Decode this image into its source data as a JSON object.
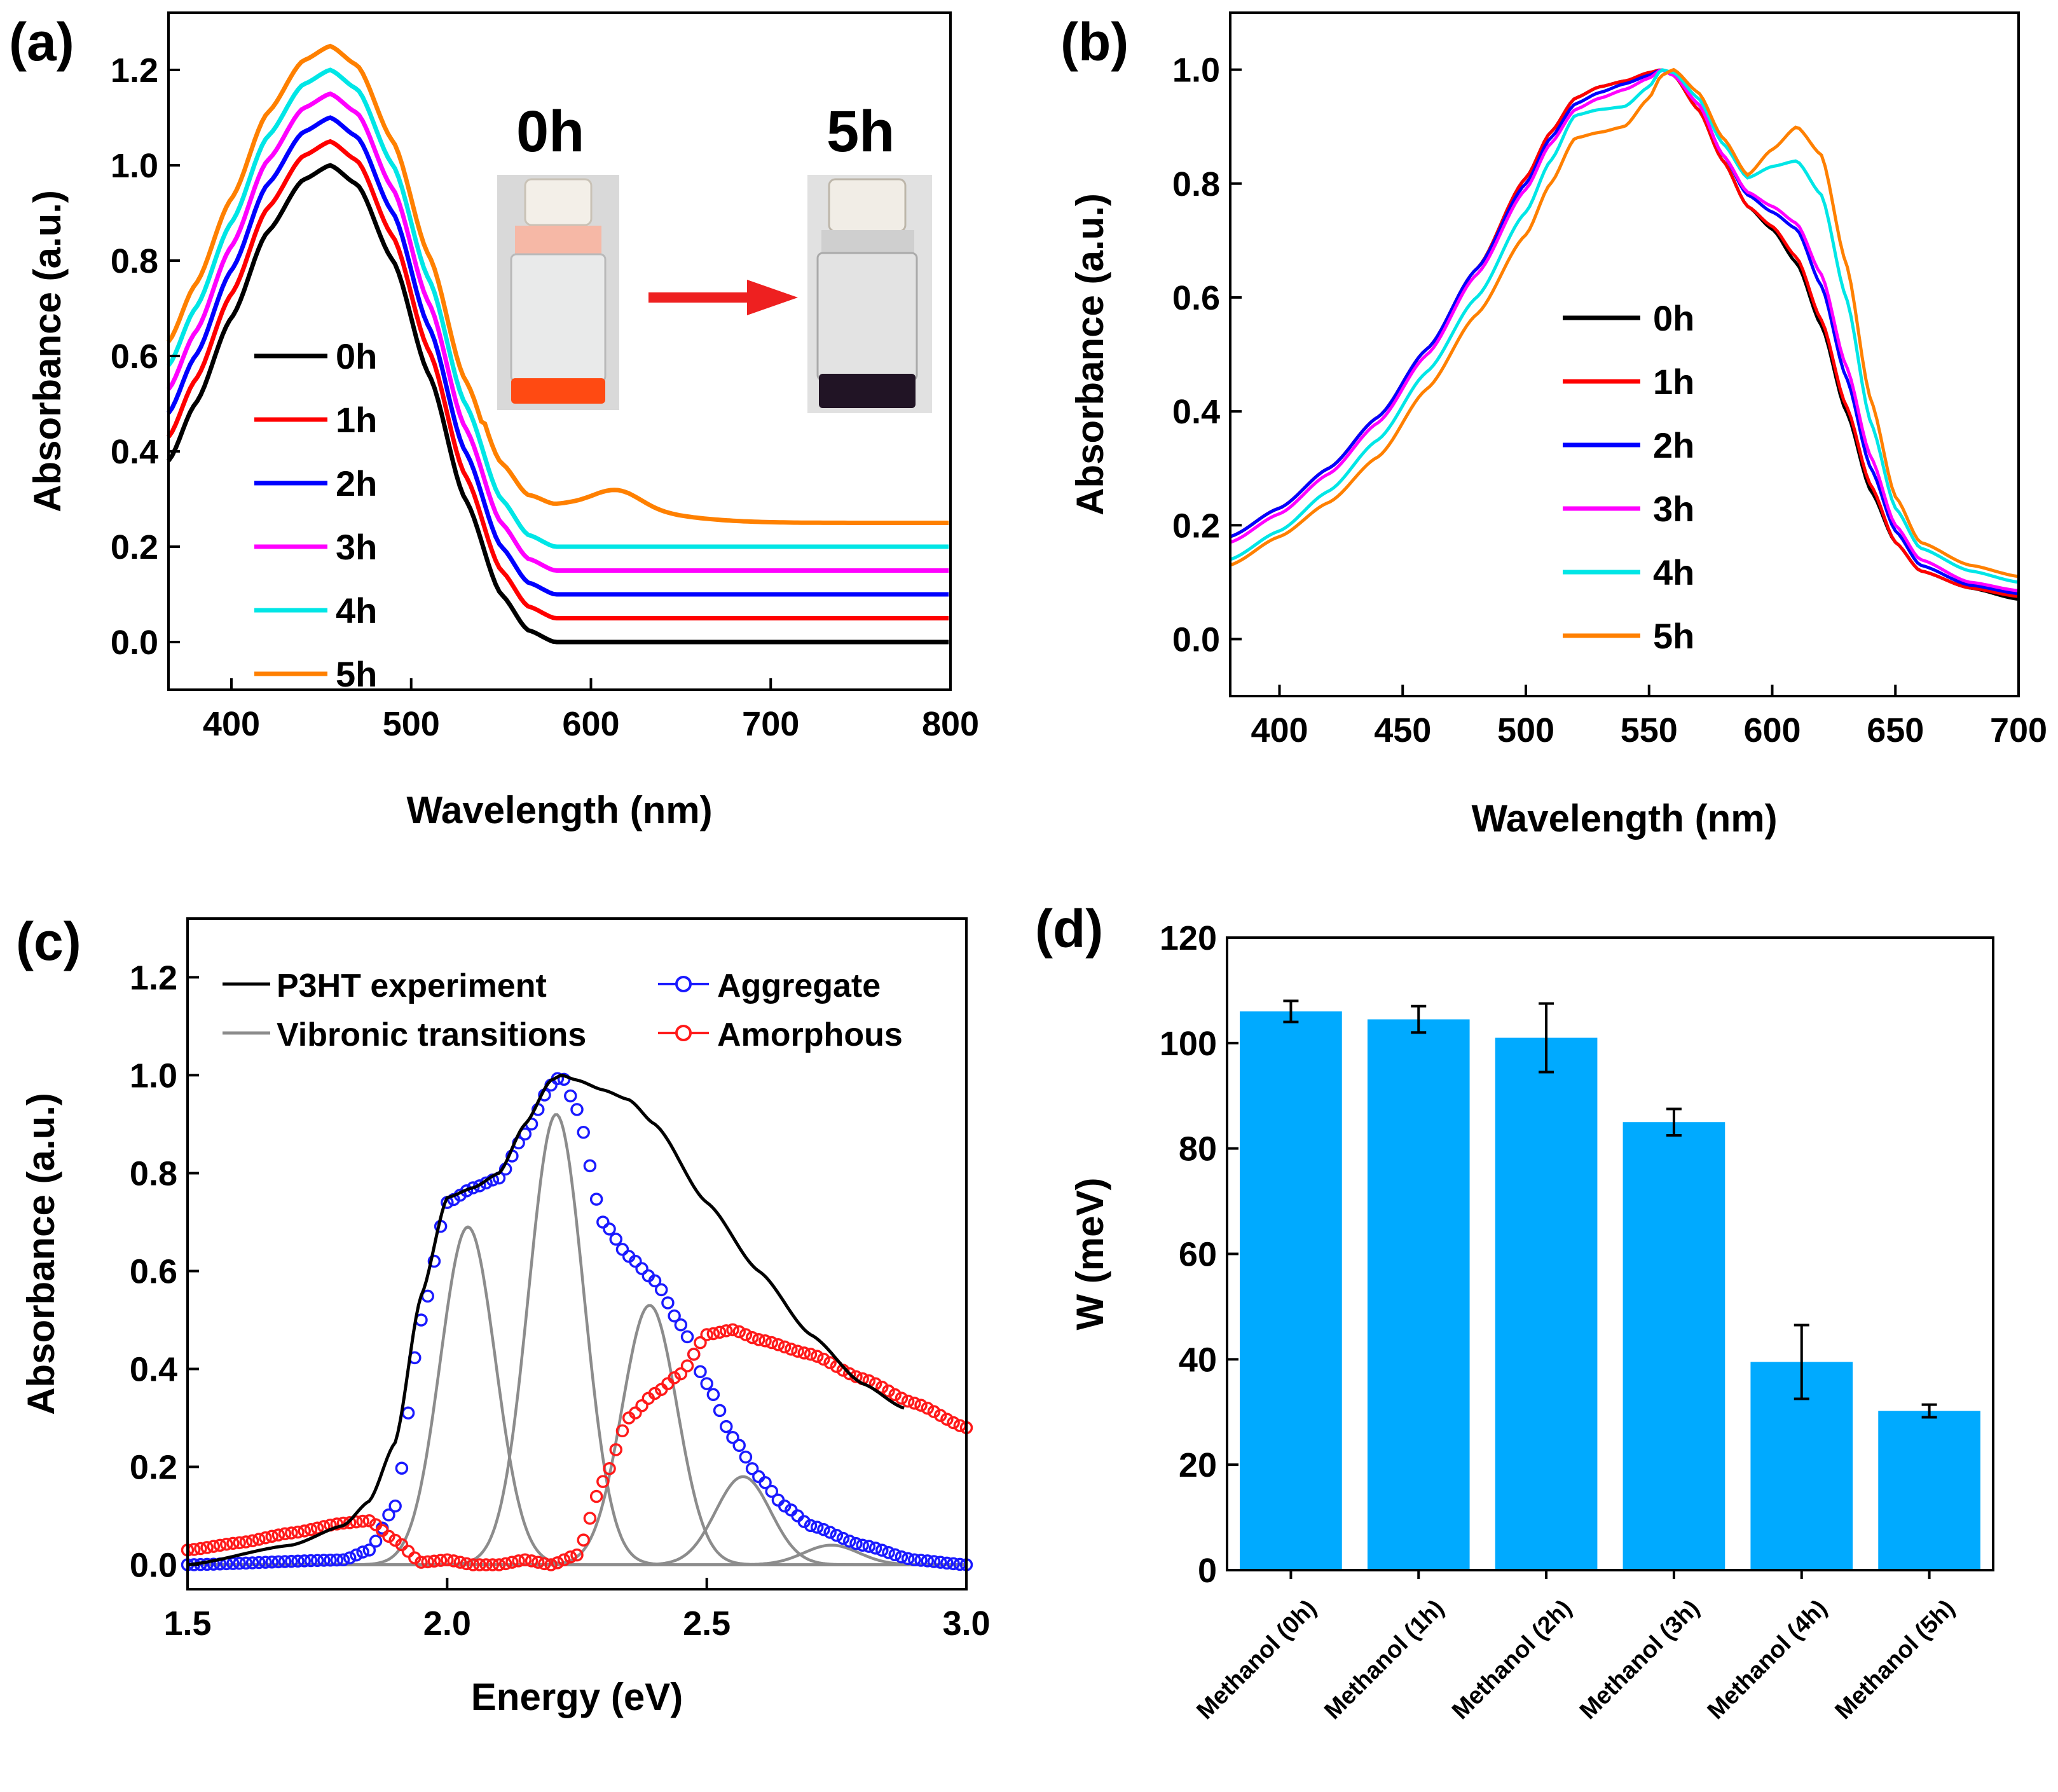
{
  "chart_data": [
    {
      "panel": "(a)",
      "type": "line",
      "xlabel": "Wavelength (nm)",
      "ylabel": "Absorbance (a.u.)",
      "xlim": [
        365,
        800
      ],
      "ylim": [
        -0.1,
        1.32
      ],
      "xticks": [
        "400",
        "500",
        "600",
        "700",
        "800"
      ],
      "yticks": [
        "0.0",
        "0.2",
        "0.4",
        "0.6",
        "0.8",
        "1.0",
        "1.2"
      ],
      "legend": [
        "0h",
        "1h",
        "2h",
        "3h",
        "4h",
        "5h"
      ],
      "inset": {
        "left_label": "0h",
        "right_label": "5h"
      },
      "series": [
        {
          "name": "0h",
          "color": "#000000",
          "offset": 0.0
        },
        {
          "name": "1h",
          "color": "#ff0000",
          "offset": 0.05
        },
        {
          "name": "2h",
          "color": "#0000ff",
          "offset": 0.1
        },
        {
          "name": "3h",
          "color": "#ff00ff",
          "offset": 0.15
        },
        {
          "name": "4h",
          "color": "#00e6e6",
          "offset": 0.2
        },
        {
          "name": "5h",
          "color": "#ff8000",
          "offset": 0.25
        }
      ],
      "base_curve": {
        "x": [
          365,
          380,
          400,
          420,
          440,
          455,
          470,
          490,
          510,
          530,
          550,
          565,
          580,
          600,
          620,
          650,
          700,
          750,
          800
        ],
        "y": [
          0.38,
          0.5,
          0.68,
          0.86,
          0.97,
          1.0,
          0.96,
          0.8,
          0.56,
          0.3,
          0.1,
          0.025,
          0.0,
          0.0,
          0.0,
          0.0,
          0.0,
          0.0,
          0.0
        ]
      },
      "bump_5h": {
        "center": 615,
        "height": 0.035,
        "width": 18
      }
    },
    {
      "panel": "(b)",
      "type": "line",
      "xlabel": "Wavelength (nm)",
      "ylabel": "Absorbance (a.u.)",
      "xlim": [
        380,
        700
      ],
      "ylim": [
        -0.1,
        1.1
      ],
      "xticks": [
        "400",
        "450",
        "500",
        "550",
        "600",
        "650",
        "700"
      ],
      "yticks": [
        "0.0",
        "0.2",
        "0.4",
        "0.6",
        "0.8",
        "1.0"
      ],
      "legend": [
        "0h",
        "1h",
        "2h",
        "3h",
        "4h",
        "5h"
      ],
      "series": [
        {
          "name": "0h",
          "color": "#000000",
          "x": [
            380,
            400,
            420,
            440,
            460,
            480,
            500,
            510,
            520,
            530,
            540,
            550,
            555,
            560,
            570,
            580,
            590,
            600,
            610,
            620,
            630,
            640,
            650,
            660,
            680,
            700
          ],
          "y": [
            0.18,
            0.23,
            0.3,
            0.39,
            0.51,
            0.65,
            0.81,
            0.89,
            0.95,
            0.97,
            0.98,
            0.99,
            1.0,
            0.99,
            0.93,
            0.84,
            0.76,
            0.72,
            0.66,
            0.55,
            0.4,
            0.26,
            0.17,
            0.12,
            0.09,
            0.07
          ]
        },
        {
          "name": "1h",
          "color": "#ff0000",
          "x": [
            380,
            400,
            420,
            440,
            460,
            480,
            500,
            510,
            520,
            530,
            540,
            550,
            555,
            560,
            570,
            580,
            590,
            600,
            610,
            620,
            630,
            640,
            650,
            660,
            680,
            700
          ],
          "y": [
            0.18,
            0.23,
            0.3,
            0.39,
            0.51,
            0.65,
            0.81,
            0.89,
            0.95,
            0.97,
            0.98,
            0.995,
            1.0,
            0.99,
            0.93,
            0.84,
            0.76,
            0.725,
            0.67,
            0.56,
            0.41,
            0.27,
            0.17,
            0.12,
            0.09,
            0.075
          ]
        },
        {
          "name": "2h",
          "color": "#0000ff",
          "x": [
            380,
            400,
            420,
            440,
            460,
            480,
            500,
            510,
            520,
            530,
            540,
            550,
            555,
            560,
            570,
            580,
            590,
            600,
            610,
            620,
            630,
            640,
            650,
            660,
            680,
            700
          ],
          "y": [
            0.18,
            0.23,
            0.3,
            0.39,
            0.51,
            0.65,
            0.8,
            0.88,
            0.94,
            0.96,
            0.975,
            0.99,
            1.0,
            0.99,
            0.94,
            0.85,
            0.78,
            0.75,
            0.72,
            0.62,
            0.46,
            0.3,
            0.19,
            0.13,
            0.095,
            0.08
          ]
        },
        {
          "name": "3h",
          "color": "#ff00ff",
          "x": [
            380,
            400,
            420,
            440,
            460,
            480,
            500,
            510,
            520,
            530,
            540,
            550,
            555,
            560,
            570,
            580,
            590,
            600,
            610,
            620,
            630,
            640,
            650,
            660,
            680,
            700
          ],
          "y": [
            0.17,
            0.22,
            0.29,
            0.38,
            0.5,
            0.64,
            0.79,
            0.87,
            0.93,
            0.95,
            0.965,
            0.985,
            1.0,
            0.99,
            0.94,
            0.85,
            0.785,
            0.76,
            0.73,
            0.64,
            0.48,
            0.32,
            0.2,
            0.14,
            0.1,
            0.085
          ]
        },
        {
          "name": "4h",
          "color": "#00e6e6",
          "x": [
            380,
            400,
            420,
            440,
            460,
            480,
            500,
            510,
            520,
            530,
            540,
            550,
            555,
            560,
            570,
            580,
            590,
            600,
            610,
            620,
            630,
            640,
            650,
            660,
            680,
            700
          ],
          "y": [
            0.14,
            0.19,
            0.26,
            0.35,
            0.47,
            0.6,
            0.75,
            0.84,
            0.92,
            0.93,
            0.935,
            0.97,
            1.0,
            0.995,
            0.95,
            0.87,
            0.81,
            0.83,
            0.84,
            0.78,
            0.6,
            0.38,
            0.23,
            0.16,
            0.12,
            0.1
          ]
        },
        {
          "name": "5h",
          "color": "#ff8000",
          "x": [
            380,
            400,
            420,
            440,
            460,
            480,
            500,
            510,
            520,
            530,
            540,
            550,
            555,
            560,
            570,
            580,
            590,
            600,
            610,
            620,
            630,
            640,
            650,
            660,
            680,
            700
          ],
          "y": [
            0.13,
            0.18,
            0.24,
            0.32,
            0.44,
            0.57,
            0.71,
            0.8,
            0.88,
            0.89,
            0.9,
            0.95,
            0.99,
            1.0,
            0.96,
            0.88,
            0.815,
            0.86,
            0.9,
            0.85,
            0.66,
            0.42,
            0.25,
            0.17,
            0.13,
            0.11
          ]
        }
      ]
    },
    {
      "panel": "(c)",
      "type": "line",
      "xlabel": "Energy (eV)",
      "ylabel": "Absorbance (a.u.)",
      "xlim": [
        1.5,
        3.0
      ],
      "ylim": [
        -0.05,
        1.32
      ],
      "xticks": [
        "1.5",
        "2.0",
        "2.5",
        "3.0"
      ],
      "yticks": [
        "0.0",
        "0.2",
        "0.4",
        "0.6",
        "0.8",
        "1.0",
        "1.2"
      ],
      "legend": [
        "P3HT experiment",
        "Vibronic transitions",
        "Aggregate",
        "Amorphous"
      ],
      "experiment": {
        "x": [
          1.5,
          1.7,
          1.8,
          1.85,
          1.9,
          1.95,
          2.0,
          2.05,
          2.1,
          2.15,
          2.2,
          2.22,
          2.25,
          2.3,
          2.35,
          2.4,
          2.5,
          2.6,
          2.7,
          2.8,
          2.88
        ],
        "y": [
          0.0,
          0.04,
          0.08,
          0.13,
          0.25,
          0.55,
          0.75,
          0.77,
          0.8,
          0.9,
          0.99,
          1.0,
          0.99,
          0.97,
          0.95,
          0.9,
          0.74,
          0.6,
          0.47,
          0.37,
          0.32
        ]
      },
      "vibronic": [
        {
          "center": 2.04,
          "height": 0.69,
          "width": 0.075
        },
        {
          "center": 2.21,
          "height": 0.92,
          "width": 0.075
        },
        {
          "center": 2.39,
          "height": 0.53,
          "width": 0.075
        },
        {
          "center": 2.57,
          "height": 0.18,
          "width": 0.075
        },
        {
          "center": 2.74,
          "height": 0.04,
          "width": 0.075
        }
      ],
      "aggregate": {
        "x": [
          1.5,
          1.8,
          1.85,
          1.9,
          1.95,
          2.0,
          2.05,
          2.1,
          2.15,
          2.2,
          2.22,
          2.25,
          2.3,
          2.35,
          2.4,
          2.45,
          2.5,
          2.55,
          2.6,
          2.65,
          2.7,
          2.8,
          2.9,
          3.0
        ],
        "y": [
          0.0,
          0.01,
          0.03,
          0.12,
          0.5,
          0.74,
          0.77,
          0.79,
          0.88,
          0.98,
          1.0,
          0.93,
          0.7,
          0.63,
          0.58,
          0.49,
          0.37,
          0.26,
          0.18,
          0.12,
          0.08,
          0.04,
          0.01,
          0.0
        ]
      },
      "amorphous": {
        "x": [
          1.5,
          1.6,
          1.7,
          1.8,
          1.85,
          1.9,
          1.95,
          2.0,
          2.05,
          2.1,
          2.15,
          2.2,
          2.25,
          2.3,
          2.35,
          2.4,
          2.45,
          2.5,
          2.55,
          2.6,
          2.7,
          2.8,
          2.9,
          3.0
        ],
        "y": [
          0.03,
          0.045,
          0.065,
          0.085,
          0.09,
          0.05,
          0.005,
          0.01,
          0.0,
          0.0,
          0.01,
          0.0,
          0.02,
          0.17,
          0.3,
          0.35,
          0.39,
          0.47,
          0.48,
          0.46,
          0.43,
          0.38,
          0.33,
          0.28
        ]
      }
    },
    {
      "panel": "(d)",
      "type": "bar",
      "ylabel": "W (meV)",
      "ylim": [
        0,
        120
      ],
      "yticks": [
        "0",
        "20",
        "40",
        "60",
        "80",
        "100",
        "120"
      ],
      "color": "#00aaff",
      "categories": [
        "Methanol (0h)",
        "Methanol (1h)",
        "Methanol (2h)",
        "Methanol (3h)",
        "Methanol (4h)",
        "Methanol (5h)"
      ],
      "values": [
        106,
        104.5,
        101,
        85,
        39.5,
        30.2
      ],
      "errors": [
        2,
        2.5,
        6.5,
        2.5,
        7,
        1.2
      ]
    }
  ]
}
